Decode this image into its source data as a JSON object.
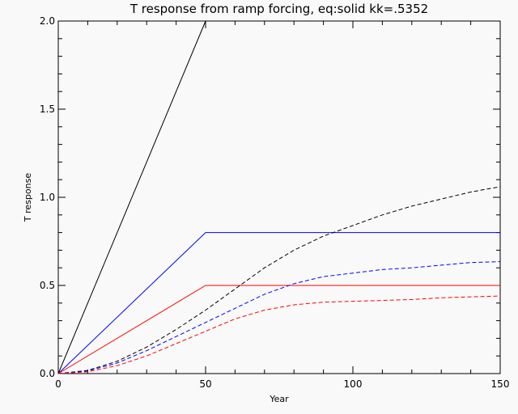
{
  "chart_data": {
    "type": "line",
    "title": "T response from ramp forcing, eq:solid kk=.5352",
    "xlabel": "Year",
    "ylabel": "T response",
    "xlim": [
      0,
      150
    ],
    "ylim": [
      0,
      2.0
    ],
    "x_ticks": [
      "0",
      "50",
      "100",
      "150"
    ],
    "y_ticks": [
      "0.0",
      "0.5",
      "1.0",
      "1.5",
      "2.0"
    ],
    "grid": false,
    "series": [
      {
        "style": "solid",
        "color": "#000000",
        "x": [
          0,
          50
        ],
        "y": [
          0,
          2.0
        ]
      },
      {
        "style": "solid",
        "color": "#0000ff",
        "x": [
          0,
          50,
          150
        ],
        "y": [
          0,
          0.8,
          0.8
        ]
      },
      {
        "style": "solid",
        "color": "#ff0000",
        "x": [
          0,
          50,
          150
        ],
        "y": [
          0,
          0.5,
          0.5
        ]
      },
      {
        "style": "dashed",
        "color": "#000000",
        "x": [
          0,
          10,
          20,
          30,
          40,
          50,
          60,
          70,
          80,
          90,
          100,
          110,
          120,
          130,
          140,
          150
        ],
        "y": [
          0,
          0.018,
          0.07,
          0.15,
          0.25,
          0.36,
          0.48,
          0.6,
          0.7,
          0.78,
          0.84,
          0.9,
          0.95,
          0.99,
          1.03,
          1.06
        ]
      },
      {
        "style": "dashed",
        "color": "#0000ff",
        "x": [
          0,
          10,
          20,
          30,
          40,
          50,
          60,
          70,
          80,
          90,
          100,
          110,
          120,
          130,
          140,
          150
        ],
        "y": [
          0,
          0.015,
          0.06,
          0.13,
          0.21,
          0.29,
          0.37,
          0.45,
          0.51,
          0.55,
          0.57,
          0.59,
          0.6,
          0.615,
          0.63,
          0.635
        ]
      },
      {
        "style": "dashed",
        "color": "#ff0000",
        "x": [
          0,
          10,
          20,
          30,
          40,
          50,
          60,
          70,
          80,
          90,
          100,
          110,
          120,
          130,
          140,
          150
        ],
        "y": [
          0,
          0.01,
          0.045,
          0.1,
          0.17,
          0.24,
          0.31,
          0.36,
          0.39,
          0.405,
          0.41,
          0.415,
          0.42,
          0.43,
          0.435,
          0.44
        ]
      }
    ]
  }
}
